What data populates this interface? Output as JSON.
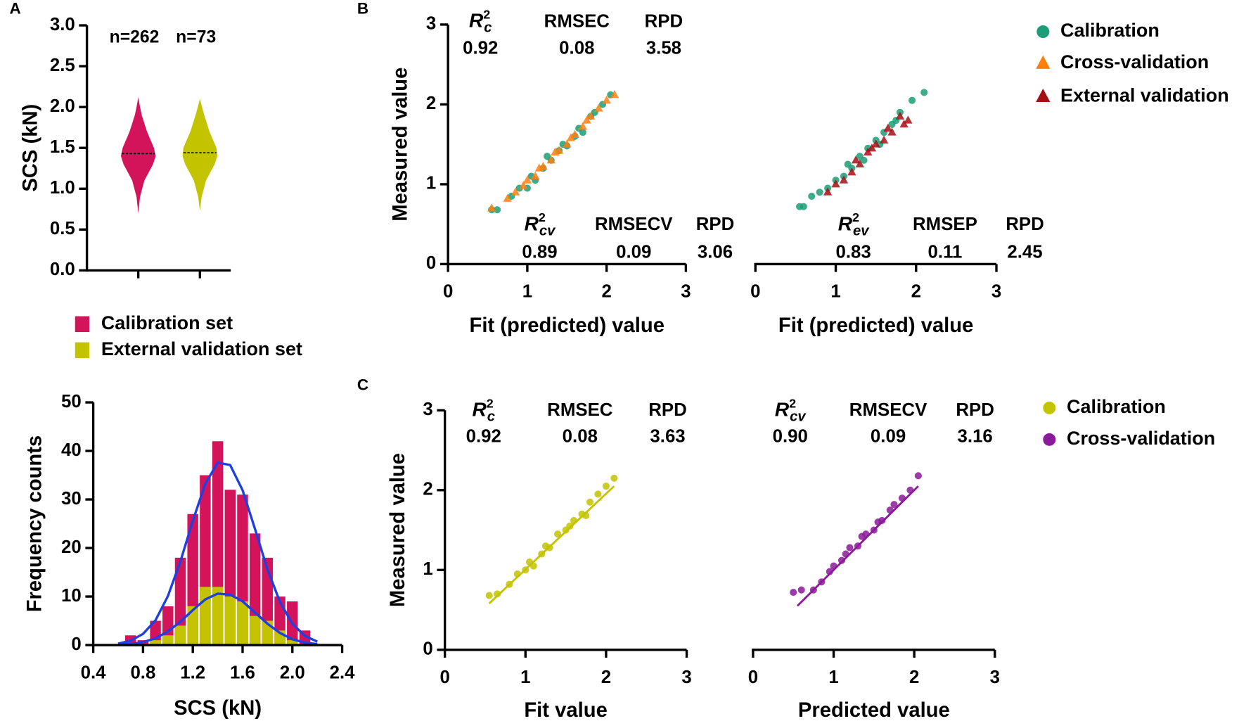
{
  "chart_data": [
    {
      "type": "violin",
      "label": "A",
      "ylabel": "SCS (kN)",
      "ylim": [
        0,
        3
      ],
      "yticks": [
        {
          "value": 0,
          "label": "0.0"
        },
        0.5,
        {
          "value": 1,
          "label": "1.0"
        },
        1.5,
        {
          "value": 2,
          "label": "2.0"
        },
        2.5,
        {
          "value": 3,
          "label": "3.0"
        }
      ],
      "series": [
        {
          "name": "Calibration set",
          "color": "#d4145a",
          "annotation": "n=262",
          "median": 1.43,
          "y": [
            0.7,
            0.9,
            1.1,
            1.2,
            1.3,
            1.4,
            1.5,
            1.6,
            1.7,
            1.8,
            1.9,
            2.0,
            2.12
          ],
          "density": [
            0,
            0.1,
            0.35,
            0.6,
            0.85,
            1,
            0.9,
            0.7,
            0.5,
            0.35,
            0.2,
            0.1,
            0
          ]
        },
        {
          "name": "External validation set",
          "color": "#c3c300",
          "annotation": "n=73",
          "median": 1.44,
          "y": [
            0.73,
            0.9,
            1.1,
            1.2,
            1.3,
            1.4,
            1.5,
            1.6,
            1.7,
            1.8,
            1.9,
            2.0,
            2.1
          ],
          "density": [
            0,
            0.1,
            0.35,
            0.6,
            0.85,
            1,
            0.95,
            0.75,
            0.55,
            0.4,
            0.25,
            0.12,
            0
          ]
        }
      ]
    },
    {
      "type": "histogram",
      "ylabel": "Frequency counts",
      "xlabel": "SCS (kN)",
      "xlim": [
        0.4,
        2.4
      ],
      "xticks": [
        0.4,
        0.8,
        1.2,
        1.6,
        {
          "value": 2,
          "label": "2.0"
        },
        2.4
      ],
      "ylim": [
        0,
        50
      ],
      "yticks": [
        0,
        10,
        20,
        30,
        40,
        50
      ],
      "bins": [
        0.65,
        0.75,
        0.85,
        0.95,
        1.05,
        1.15,
        1.25,
        1.35,
        1.45,
        1.55,
        1.65,
        1.75,
        1.85,
        1.95,
        2.05,
        2.15
      ],
      "series": [
        {
          "color": "#d4145a",
          "values": [
            2,
            1,
            5,
            8,
            18,
            27,
            35,
            42,
            32,
            31,
            23,
            18,
            10,
            9,
            3
          ]
        },
        {
          "color": "#c3c300",
          "values": [
            0,
            0,
            1,
            2,
            4,
            8,
            12,
            12,
            10,
            9,
            6,
            5,
            3,
            1,
            0
          ]
        }
      ],
      "curves": [
        {
          "color": "#1f3fe0",
          "x": [
            0.6,
            0.7,
            0.8,
            0.9,
            1.0,
            1.1,
            1.2,
            1.3,
            1.4,
            1.5,
            1.6,
            1.7,
            1.8,
            1.9,
            2.0,
            2.1,
            2.2
          ],
          "values": [
            0.3,
            0.9,
            2.3,
            5.1,
            10.1,
            17.2,
            25.6,
            33.2,
            37.6,
            37.1,
            31.9,
            23.9,
            15.6,
            8.9,
            4.4,
            1.9,
            0.7
          ]
        },
        {
          "color": "#1f3fe0",
          "x": [
            0.6,
            0.7,
            0.8,
            0.9,
            1.0,
            1.1,
            1.2,
            1.3,
            1.4,
            1.5,
            1.6,
            1.7,
            1.8,
            1.9,
            2.0,
            2.1,
            2.2
          ],
          "values": [
            0.1,
            0.2,
            0.6,
            1.4,
            2.8,
            4.8,
            7.2,
            9.4,
            10.6,
            10.4,
            9.0,
            6.7,
            4.4,
            2.5,
            1.2,
            0.5,
            0.2
          ]
        }
      ]
    },
    {
      "type": "scatter",
      "label": "B",
      "xlabel": "Fit (predicted) value",
      "ylabel": "Measured value",
      "xlim": [
        0,
        3
      ],
      "xticks": [
        0,
        1,
        2,
        3
      ],
      "ylim": [
        0,
        3
      ],
      "yticks": [
        0,
        1,
        2,
        3
      ],
      "series": [
        {
          "name": "Calibration",
          "color": "#1b9e77",
          "marker": "circle",
          "x": [
            0.55,
            0.62,
            0.8,
            0.9,
            1.0,
            1.05,
            1.1,
            1.2,
            1.25,
            1.3,
            1.4,
            1.45,
            1.5,
            1.6,
            1.65,
            1.7,
            1.8,
            1.85,
            1.95,
            2.05
          ],
          "values": [
            0.68,
            0.68,
            0.85,
            0.95,
            0.95,
            1.1,
            1.05,
            1.2,
            1.35,
            1.3,
            1.42,
            1.5,
            1.48,
            1.6,
            1.7,
            1.65,
            1.85,
            1.9,
            2.0,
            2.12
          ]
        },
        {
          "name": "Cross-validation",
          "color": "#ff7f0e",
          "marker": "triangle",
          "x": [
            0.55,
            0.75,
            0.85,
            0.95,
            1.0,
            1.1,
            1.15,
            1.2,
            1.3,
            1.35,
            1.4,
            1.5,
            1.55,
            1.6,
            1.7,
            1.75,
            1.8,
            1.9,
            2.0,
            2.1
          ],
          "values": [
            0.7,
            0.82,
            0.9,
            0.98,
            1.05,
            1.1,
            1.2,
            1.22,
            1.3,
            1.4,
            1.42,
            1.5,
            1.58,
            1.62,
            1.72,
            1.8,
            1.85,
            1.95,
            2.05,
            2.12
          ]
        }
      ],
      "stats": [
        {
          "color": "#1b9e77",
          "items": [
            {
              "name": {
                "base": "R",
                "sup": "2",
                "sub": "c"
              },
              "value": 0.92
            },
            {
              "name": "RMSEC",
              "value": 0.08
            },
            {
              "name": "RPD",
              "value": 3.58
            }
          ]
        },
        {
          "color": "#ff7f0e",
          "items": [
            {
              "name": {
                "base": "R",
                "sup": "2",
                "sub": "cv"
              },
              "value": 0.89
            },
            {
              "name": "RMSECV",
              "value": 0.09
            },
            {
              "name": "RPD",
              "value": 3.06
            }
          ]
        }
      ]
    },
    {
      "type": "scatter",
      "xlabel": "Fit (predicted) value",
      "xlim": [
        0,
        3
      ],
      "xticks": [
        0,
        1,
        2,
        3
      ],
      "ylim": [
        0,
        3
      ],
      "series": [
        {
          "name": "Calibration",
          "color": "#1b9e77",
          "marker": "circle",
          "x": [
            0.55,
            0.6,
            0.7,
            0.8,
            0.9,
            1.0,
            1.1,
            1.15,
            1.2,
            1.3,
            1.35,
            1.4,
            1.5,
            1.55,
            1.6,
            1.7,
            1.75,
            1.8,
            1.95,
            2.1
          ],
          "values": [
            0.72,
            0.72,
            0.85,
            0.9,
            0.95,
            1.05,
            1.1,
            1.25,
            1.2,
            1.35,
            1.3,
            1.45,
            1.55,
            1.5,
            1.65,
            1.75,
            1.8,
            1.9,
            2.05,
            2.15
          ]
        },
        {
          "name": "External validation",
          "color": "#a50f15",
          "marker": "triangle",
          "x": [
            0.9,
            1.0,
            1.1,
            1.2,
            1.25,
            1.3,
            1.4,
            1.45,
            1.5,
            1.6,
            1.65,
            1.7,
            1.8,
            1.85,
            1.9
          ],
          "values": [
            0.9,
            1.0,
            1.05,
            1.15,
            1.3,
            1.25,
            1.4,
            1.45,
            1.5,
            1.55,
            1.7,
            1.65,
            1.85,
            1.75,
            1.8
          ]
        }
      ],
      "stats": [
        {
          "color": "#a50f15",
          "items": [
            {
              "name": {
                "base": "R",
                "sup": "2",
                "sub": "ev"
              },
              "value": 0.83
            },
            {
              "name": "RMSEP",
              "value": 0.11
            },
            {
              "name": "RPD",
              "value": 2.45
            }
          ]
        }
      ]
    },
    {
      "type": "scatter",
      "label": "C",
      "xlabel": "Fit value",
      "ylabel": "Measured value",
      "xlim": [
        0,
        3
      ],
      "xticks": [
        0,
        1,
        2,
        3
      ],
      "ylim": [
        0,
        3
      ],
      "yticks": [
        0,
        1,
        2,
        3
      ],
      "series": [
        {
          "name": "Calibration",
          "color": "#c3c300",
          "marker": "circle",
          "x": [
            0.55,
            0.65,
            0.8,
            0.9,
            1.0,
            1.05,
            1.1,
            1.2,
            1.25,
            1.3,
            1.4,
            1.5,
            1.55,
            1.6,
            1.7,
            1.75,
            1.8,
            1.9,
            2.0,
            2.1
          ],
          "values": [
            0.68,
            0.7,
            0.82,
            0.95,
            1.0,
            1.1,
            1.05,
            1.2,
            1.3,
            1.28,
            1.45,
            1.5,
            1.55,
            1.62,
            1.7,
            1.68,
            1.85,
            1.95,
            2.05,
            2.15
          ],
          "fit_line": {
            "x": [
              0.55,
              2.1
            ],
            "values": [
              0.58,
              2.05
            ]
          }
        }
      ],
      "stats": [
        {
          "color": "#c3c300",
          "items": [
            {
              "name": {
                "base": "R",
                "sup": "2",
                "sub": "c"
              },
              "value": 0.92
            },
            {
              "name": "RMSEC",
              "value": 0.08
            },
            {
              "name": "RPD",
              "value": 3.63
            }
          ]
        }
      ]
    },
    {
      "type": "scatter",
      "xlabel": "Predicted value",
      "xlim": [
        0,
        3
      ],
      "xticks": [
        0,
        1,
        2,
        3
      ],
      "ylim": [
        0,
        3
      ],
      "series": [
        {
          "name": "Cross-validation",
          "color": "#8b1a9a",
          "marker": "circle",
          "x": [
            0.5,
            0.6,
            0.75,
            0.85,
            0.95,
            1.0,
            1.1,
            1.15,
            1.2,
            1.3,
            1.35,
            1.4,
            1.5,
            1.55,
            1.6,
            1.7,
            1.75,
            1.85,
            1.95,
            2.05
          ],
          "values": [
            0.72,
            0.75,
            0.75,
            0.85,
            0.98,
            1.05,
            1.12,
            1.2,
            1.28,
            1.3,
            1.42,
            1.45,
            1.5,
            1.6,
            1.62,
            1.75,
            1.82,
            1.9,
            2.0,
            2.18
          ],
          "fit_line": {
            "x": [
              0.55,
              2.05
            ],
            "values": [
              0.55,
              2.05
            ]
          }
        }
      ],
      "stats": [
        {
          "color": "#8b1a9a",
          "items": [
            {
              "name": {
                "base": "R",
                "sup": "2",
                "sub": "cv"
              },
              "value": {
                "value": 0.9,
                "label": "0.90"
              }
            },
            {
              "name": "RMSECV",
              "value": 0.09
            },
            {
              "name": "RPD",
              "value": 3.16
            }
          ]
        }
      ]
    }
  ]
}
